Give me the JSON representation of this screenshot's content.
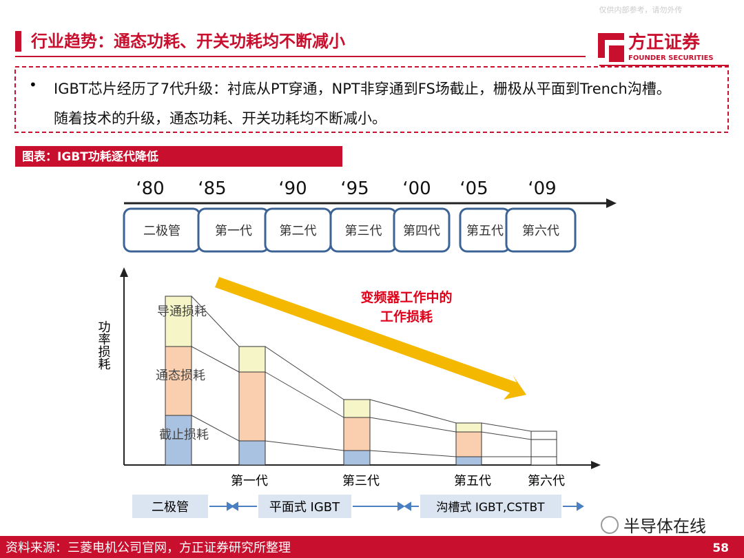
{
  "watermark": "仅供内部参考，请勿外传",
  "header": {
    "title": "行业趋势：通态功耗、开关功耗均不断减小",
    "logo": "方正证券",
    "logo_sub": "FOUNDER SECURITIES"
  },
  "bullet": "IGBT芯片经历了7代升级：衬底从PT穿通，NPT非穿通到FS场截止，栅极从平面到Trench沟槽。随着技术的升级，通态功耗、开关功耗均不断减小。",
  "figure_title": "图表：IGBT功耗逐代降低",
  "timeline": {
    "years": [
      "‘80",
      "‘85",
      "‘90",
      "‘95",
      "‘00",
      "‘05",
      "‘09"
    ],
    "generations": [
      "二极管",
      "第一代",
      "第二代",
      "第三代",
      "第四代",
      "第五代",
      "第六代"
    ]
  },
  "diagram": {
    "y_label": "功率损耗",
    "layers": [
      "导通损耗",
      "通态损耗",
      "截止损耗"
    ],
    "arrow_label": [
      "变频器工作中的",
      "工作损耗"
    ],
    "x_labels": [
      "第一代",
      "第三代",
      "第五代",
      "第六代"
    ],
    "technologies": [
      "二极管",
      "平面式 IGBT",
      "沟槽式 IGBT,CSTBT"
    ]
  },
  "source": "资料来源：三菱电机公司官网，方正证券研究所整理",
  "page": "58",
  "brand": "半导体在线"
}
